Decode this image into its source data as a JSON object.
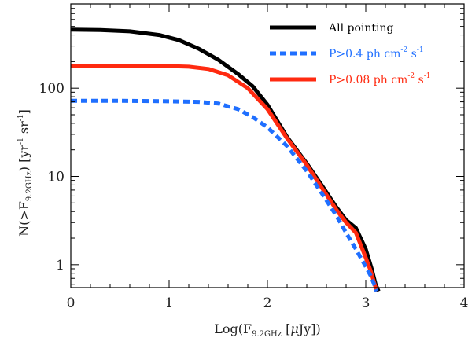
{
  "chart_data": {
    "type": "line",
    "xlabel": "Log(F9.2GHz [μJy])",
    "ylabel": "N(>F9.2GHz) [yr-1 sr-1]",
    "xlim": [
      0,
      4
    ],
    "ylim": [
      0.55,
      900
    ],
    "y_scale": "log",
    "grid": false,
    "legend_position": "top-right",
    "x_ticks": [
      "0",
      "1",
      "2",
      "3",
      "4"
    ],
    "y_ticks": [
      "1",
      "10",
      "100"
    ],
    "series": [
      {
        "name": "All pointing",
        "color": "#000000",
        "style": "solid",
        "x": [
          0,
          0.3,
          0.6,
          0.9,
          1.1,
          1.3,
          1.5,
          1.7,
          1.85,
          2.0,
          2.2,
          2.4,
          2.55,
          2.7,
          2.8,
          2.9,
          3.0,
          3.06,
          3.1,
          3.13
        ],
        "y": [
          460,
          455,
          440,
          400,
          350,
          280,
          210,
          145,
          105,
          65,
          28,
          14,
          8,
          4.5,
          3.2,
          2.6,
          1.5,
          0.9,
          0.6,
          0.5
        ]
      },
      {
        "name": "P>0.4 ph cm-2 s-1",
        "color": "#1f6fff",
        "style": "dashed",
        "x": [
          0,
          0.5,
          1.0,
          1.3,
          1.5,
          1.7,
          1.85,
          2.0,
          2.2,
          2.4,
          2.55,
          2.7,
          2.8,
          2.9,
          3.0,
          3.05,
          3.09,
          3.11
        ],
        "y": [
          72,
          72,
          71,
          70,
          67,
          58,
          47,
          36,
          22,
          11.5,
          6.5,
          3.6,
          2.3,
          1.5,
          0.95,
          0.75,
          0.58,
          0.5
        ]
      },
      {
        "name": "P>0.08 ph cm-2 s-1",
        "color": "#ff2a10",
        "style": "solid",
        "x": [
          0,
          0.5,
          1.0,
          1.2,
          1.4,
          1.6,
          1.8,
          2.0,
          2.2,
          2.4,
          2.55,
          2.7,
          2.8,
          2.9,
          3.0,
          3.05,
          3.09,
          3.11
        ],
        "y": [
          180,
          180,
          178,
          175,
          165,
          140,
          100,
          58,
          27,
          13.5,
          7.5,
          4.2,
          3.0,
          2.3,
          1.2,
          0.85,
          0.6,
          0.5
        ]
      }
    ]
  },
  "legend": [
    {
      "text": "All pointing"
    },
    {
      "text": "P>0.4 ph cm",
      "sup1": "-2",
      "mid": " s",
      "sup2": "-1"
    },
    {
      "text": "P>0.08 ph cm",
      "sup1": "-2",
      "mid": " s",
      "sup2": "-1"
    }
  ],
  "axes": {
    "x_title": {
      "pre": "Log(F",
      "sub": "9.2GHz",
      "post": " [",
      "mu": "μ",
      "post2": "Jy])"
    },
    "y_title": {
      "pre": "N(>F",
      "sub": "9.2GHz",
      "mid": ") [yr",
      "sup1": "-1",
      "mid2": " sr",
      "sup2": "-1",
      "post": "]"
    }
  }
}
